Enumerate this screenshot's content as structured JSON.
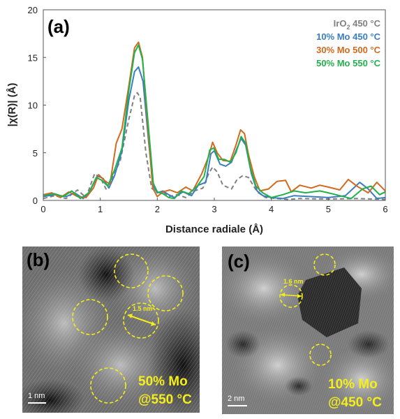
{
  "figure": {
    "panel_a_label": "(a)",
    "panel_b_label": "(b)",
    "panel_c_label": "(c)"
  },
  "chart_data": {
    "type": "line",
    "xlabel": "Distance radiale (Å)",
    "ylabel": "|χ(R)| (Å)",
    "xlim": [
      0,
      6
    ],
    "ylim": [
      0,
      20
    ],
    "x_ticks": [
      "0",
      "1",
      "2",
      "3",
      "4",
      "5",
      "6"
    ],
    "y_ticks": [
      "0",
      "5",
      "10",
      "15",
      "20"
    ],
    "legend_position": "top-right",
    "grid": false,
    "series": [
      {
        "name_main": "IrO",
        "name_sub": "2",
        "name_rest": " 450 °C",
        "color": "#808080",
        "dashed": true,
        "points": [
          [
            0,
            0.2
          ],
          [
            0.2,
            0.5
          ],
          [
            0.4,
            0.2
          ],
          [
            0.6,
            1.1
          ],
          [
            0.75,
            0.3
          ],
          [
            0.9,
            2.8
          ],
          [
            1.0,
            2.4
          ],
          [
            1.1,
            1.2
          ],
          [
            1.2,
            2.2
          ],
          [
            1.35,
            4.2
          ],
          [
            1.5,
            8.5
          ],
          [
            1.6,
            11.0
          ],
          [
            1.65,
            11.3
          ],
          [
            1.7,
            10.8
          ],
          [
            1.8,
            5.0
          ],
          [
            1.9,
            1.3
          ],
          [
            2.0,
            0.8
          ],
          [
            2.1,
            0.9
          ],
          [
            2.2,
            0.4
          ],
          [
            2.35,
            0.6
          ],
          [
            2.5,
            0.3
          ],
          [
            2.65,
            1.0
          ],
          [
            2.8,
            1.3
          ],
          [
            2.9,
            2.8
          ],
          [
            2.97,
            3.5
          ],
          [
            3.05,
            3.0
          ],
          [
            3.15,
            1.6
          ],
          [
            3.3,
            1.2
          ],
          [
            3.4,
            2.2
          ],
          [
            3.5,
            2.6
          ],
          [
            3.6,
            2.4
          ],
          [
            3.75,
            0.9
          ],
          [
            3.9,
            0.3
          ],
          [
            4.1,
            0.2
          ],
          [
            4.3,
            0.1
          ],
          [
            4.5,
            0.2
          ],
          [
            5.0,
            0.15
          ],
          [
            5.5,
            0.2
          ],
          [
            6.0,
            0.1
          ]
        ]
      },
      {
        "name": "10% Mo 450 °C",
        "color": "#3a7dc2",
        "dashed": false,
        "points": [
          [
            0,
            0.4
          ],
          [
            0.2,
            0.6
          ],
          [
            0.4,
            0.4
          ],
          [
            0.55,
            0.8
          ],
          [
            0.7,
            0.2
          ],
          [
            0.82,
            1.0
          ],
          [
            0.95,
            2.6
          ],
          [
            1.05,
            2.3
          ],
          [
            1.15,
            1.3
          ],
          [
            1.25,
            2.6
          ],
          [
            1.38,
            5.2
          ],
          [
            1.5,
            10.5
          ],
          [
            1.6,
            13.5
          ],
          [
            1.67,
            14.0
          ],
          [
            1.75,
            12.5
          ],
          [
            1.85,
            6.0
          ],
          [
            1.93,
            1.5
          ],
          [
            2.0,
            0.8
          ],
          [
            2.1,
            1.0
          ],
          [
            2.2,
            0.6
          ],
          [
            2.3,
            0.3
          ],
          [
            2.45,
            0.9
          ],
          [
            2.6,
            0.5
          ],
          [
            2.72,
            1.6
          ],
          [
            2.85,
            1.9
          ],
          [
            2.94,
            4.9
          ],
          [
            3.0,
            5.2
          ],
          [
            3.1,
            3.8
          ],
          [
            3.2,
            3.6
          ],
          [
            3.3,
            4.0
          ],
          [
            3.4,
            5.5
          ],
          [
            3.47,
            6.5
          ],
          [
            3.55,
            5.8
          ],
          [
            3.65,
            2.8
          ],
          [
            3.75,
            1.0
          ],
          [
            3.85,
            0.5
          ],
          [
            4.0,
            0.3
          ],
          [
            4.2,
            0.2
          ],
          [
            4.4,
            0.5
          ],
          [
            4.7,
            0.4
          ],
          [
            5.0,
            0.3
          ],
          [
            5.3,
            0.5
          ],
          [
            5.55,
            1.9
          ],
          [
            5.7,
            1.2
          ],
          [
            5.85,
            0.2
          ],
          [
            6.0,
            0.3
          ]
        ]
      },
      {
        "name": "30% Mo 500 °C",
        "color": "#d2691e",
        "dashed": false,
        "points": [
          [
            0,
            0.6
          ],
          [
            0.15,
            0.8
          ],
          [
            0.3,
            0.3
          ],
          [
            0.45,
            0.9
          ],
          [
            0.6,
            0.4
          ],
          [
            0.75,
            0.3
          ],
          [
            0.88,
            1.3
          ],
          [
            0.97,
            2.7
          ],
          [
            1.07,
            2.1
          ],
          [
            1.17,
            1.7
          ],
          [
            1.28,
            6.0
          ],
          [
            1.38,
            7.5
          ],
          [
            1.5,
            12.0
          ],
          [
            1.6,
            16.0
          ],
          [
            1.67,
            16.6
          ],
          [
            1.74,
            15.0
          ],
          [
            1.83,
            8.0
          ],
          [
            1.92,
            1.3
          ],
          [
            2.0,
            0.4
          ],
          [
            2.1,
            0.9
          ],
          [
            2.22,
            1.1
          ],
          [
            2.35,
            0.8
          ],
          [
            2.5,
            1.4
          ],
          [
            2.62,
            1.0
          ],
          [
            2.78,
            2.8
          ],
          [
            2.9,
            4.6
          ],
          [
            2.97,
            6.1
          ],
          [
            3.05,
            5.0
          ],
          [
            3.15,
            4.2
          ],
          [
            3.28,
            4.1
          ],
          [
            3.38,
            5.8
          ],
          [
            3.46,
            7.4
          ],
          [
            3.53,
            7.0
          ],
          [
            3.6,
            4.8
          ],
          [
            3.7,
            2.5
          ],
          [
            3.8,
            1.0
          ],
          [
            3.95,
            1.2
          ],
          [
            4.1,
            2.0
          ],
          [
            4.25,
            2.1
          ],
          [
            4.35,
            0.9
          ],
          [
            4.5,
            1.6
          ],
          [
            4.7,
            1.3
          ],
          [
            4.85,
            1.6
          ],
          [
            5.0,
            1.4
          ],
          [
            5.2,
            1.1
          ],
          [
            5.35,
            2.2
          ],
          [
            5.5,
            1.5
          ],
          [
            5.7,
            0.8
          ],
          [
            5.85,
            1.9
          ],
          [
            6.0,
            1.0
          ]
        ]
      },
      {
        "name": "50% Mo 550 °C",
        "color": "#22b14c",
        "dashed": false,
        "points": [
          [
            0,
            0.5
          ],
          [
            0.2,
            0.7
          ],
          [
            0.35,
            0.4
          ],
          [
            0.5,
            1.0
          ],
          [
            0.65,
            0.2
          ],
          [
            0.8,
            0.8
          ],
          [
            0.93,
            2.4
          ],
          [
            1.03,
            2.1
          ],
          [
            1.13,
            1.5
          ],
          [
            1.25,
            3.2
          ],
          [
            1.38,
            5.5
          ],
          [
            1.5,
            11.5
          ],
          [
            1.6,
            15.5
          ],
          [
            1.67,
            16.3
          ],
          [
            1.74,
            14.8
          ],
          [
            1.84,
            8.0
          ],
          [
            1.93,
            1.8
          ],
          [
            2.0,
            0.9
          ],
          [
            2.1,
            0.7
          ],
          [
            2.2,
            0.3
          ],
          [
            2.3,
            0.2
          ],
          [
            2.42,
            1.0
          ],
          [
            2.55,
            0.7
          ],
          [
            2.7,
            1.5
          ],
          [
            2.82,
            2.5
          ],
          [
            2.92,
            5.3
          ],
          [
            2.99,
            5.5
          ],
          [
            3.08,
            4.3
          ],
          [
            3.18,
            4.3
          ],
          [
            3.28,
            4.0
          ],
          [
            3.38,
            5.0
          ],
          [
            3.47,
            6.7
          ],
          [
            3.55,
            6.0
          ],
          [
            3.63,
            3.5
          ],
          [
            3.73,
            1.5
          ],
          [
            3.85,
            0.8
          ],
          [
            4.0,
            0.3
          ],
          [
            4.2,
            0.6
          ],
          [
            4.4,
            1.0
          ],
          [
            4.6,
            0.8
          ],
          [
            4.85,
            1.0
          ],
          [
            5.0,
            0.8
          ],
          [
            5.2,
            0.5
          ],
          [
            5.4,
            0.2
          ],
          [
            5.6,
            1.2
          ],
          [
            5.75,
            1.5
          ],
          [
            5.9,
            0.6
          ],
          [
            6.0,
            0.9
          ]
        ]
      }
    ]
  },
  "micrographs": {
    "b": {
      "caption_line1": "50% Mo",
      "caption_line2": "@550 °C",
      "scale_label": "1 nm",
      "scale_label_small": "1 nm",
      "measure_label": "1.5 nm"
    },
    "c": {
      "caption_line1": "10% Mo",
      "caption_line2": "@450 °C",
      "scale_label": "2 nm",
      "scale_label_small": "2 nm",
      "measure_label": "1.6 nm"
    }
  }
}
